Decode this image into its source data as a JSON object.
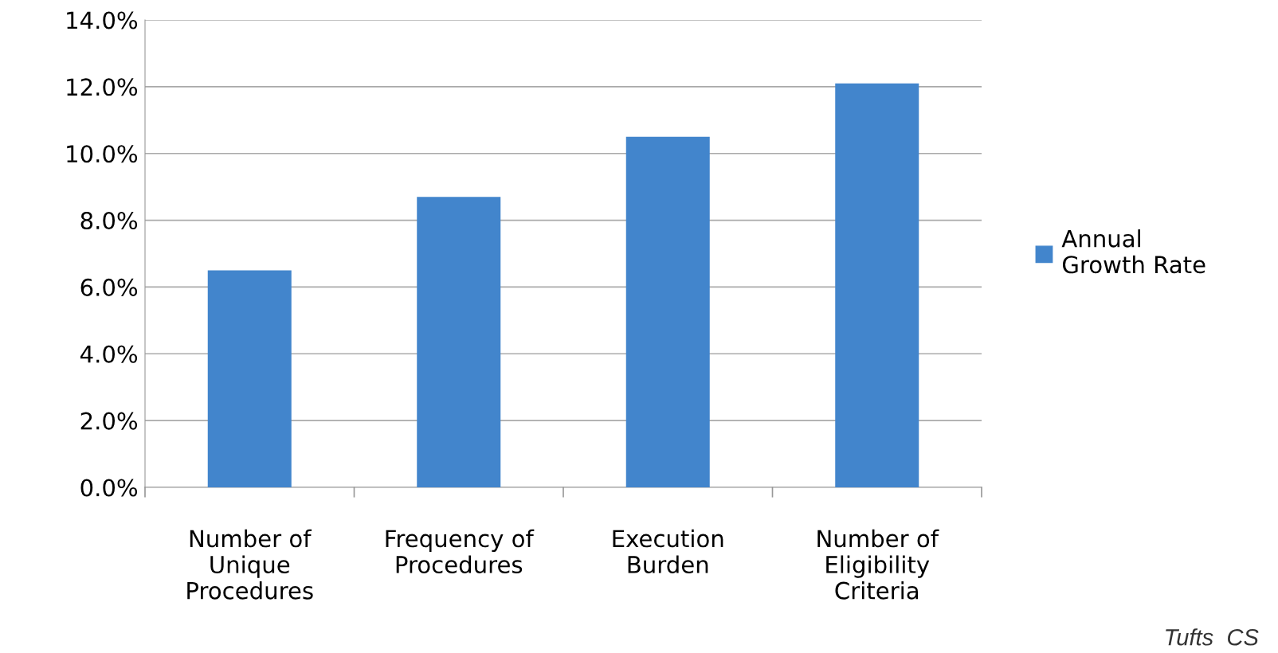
{
  "chart_data": {
    "type": "bar",
    "categories": [
      "Number of\nUnique\nProcedures",
      "Frequency of\nProcedures",
      "Execution\nBurden",
      "Number of\nEligibility\nCriteria"
    ],
    "series": [
      {
        "name": "Annual\nGrowth Rate",
        "color": "#4285cc",
        "values": [
          6.5,
          8.7,
          10.5,
          12.1
        ]
      }
    ],
    "ylim": [
      0,
      14
    ],
    "yticks": [
      {
        "value": 0,
        "label": "0.0%"
      },
      {
        "value": 2,
        "label": "2.0%"
      },
      {
        "value": 4,
        "label": "4.0%"
      },
      {
        "value": 6,
        "label": "6.0%"
      },
      {
        "value": 8,
        "label": "8.0%"
      },
      {
        "value": 10,
        "label": "10.0%"
      },
      {
        "value": 12,
        "label": "12.0%"
      },
      {
        "value": 14,
        "label": "14.0%"
      }
    ],
    "grid": "y",
    "legend": "right",
    "annotations": [
      "Tufts  CS"
    ]
  }
}
